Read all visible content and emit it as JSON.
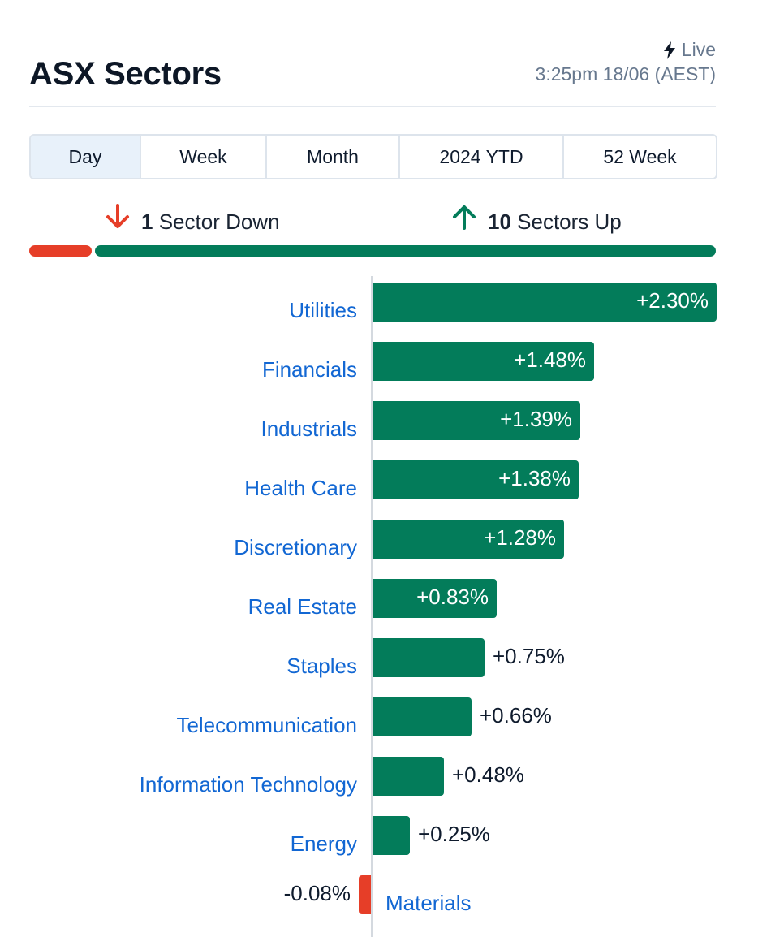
{
  "header": {
    "title": "ASX Sectors",
    "live_label": "Live",
    "live_icon": "lightning-bolt-icon",
    "timestamp": "3:25pm 18/06 (AEST)"
  },
  "tabs": [
    {
      "label": "Day",
      "active": true
    },
    {
      "label": "Week",
      "active": false
    },
    {
      "label": "Month",
      "active": false
    },
    {
      "label": "2024 YTD",
      "active": false
    },
    {
      "label": "52 Week",
      "active": false
    }
  ],
  "summary": {
    "down_count": "1",
    "down_label": "Sector Down",
    "down_icon": "arrow-down-icon",
    "up_count": "10",
    "up_label": "Sectors Up",
    "up_icon": "arrow-up-icon"
  },
  "colors": {
    "positive": "#037c5a",
    "negative": "#e63e28",
    "label": "#1267d3"
  },
  "chart_data": {
    "type": "bar",
    "orientation": "horizontal",
    "categories": [
      "Utilities",
      "Financials",
      "Industrials",
      "Health Care",
      "Discretionary",
      "Real Estate",
      "Staples",
      "Telecommunication",
      "Information Technology",
      "Energy",
      "Materials"
    ],
    "values": [
      2.3,
      1.48,
      1.39,
      1.38,
      1.28,
      0.83,
      0.75,
      0.66,
      0.48,
      0.25,
      -0.08
    ],
    "value_labels": [
      "+2.30%",
      "+1.48%",
      "+1.39%",
      "+1.38%",
      "+1.28%",
      "+0.83%",
      "+0.75%",
      "+0.66%",
      "+0.48%",
      "+0.25%",
      "-0.08%"
    ],
    "unit": "%",
    "xlim": [
      -0.08,
      2.3
    ]
  }
}
